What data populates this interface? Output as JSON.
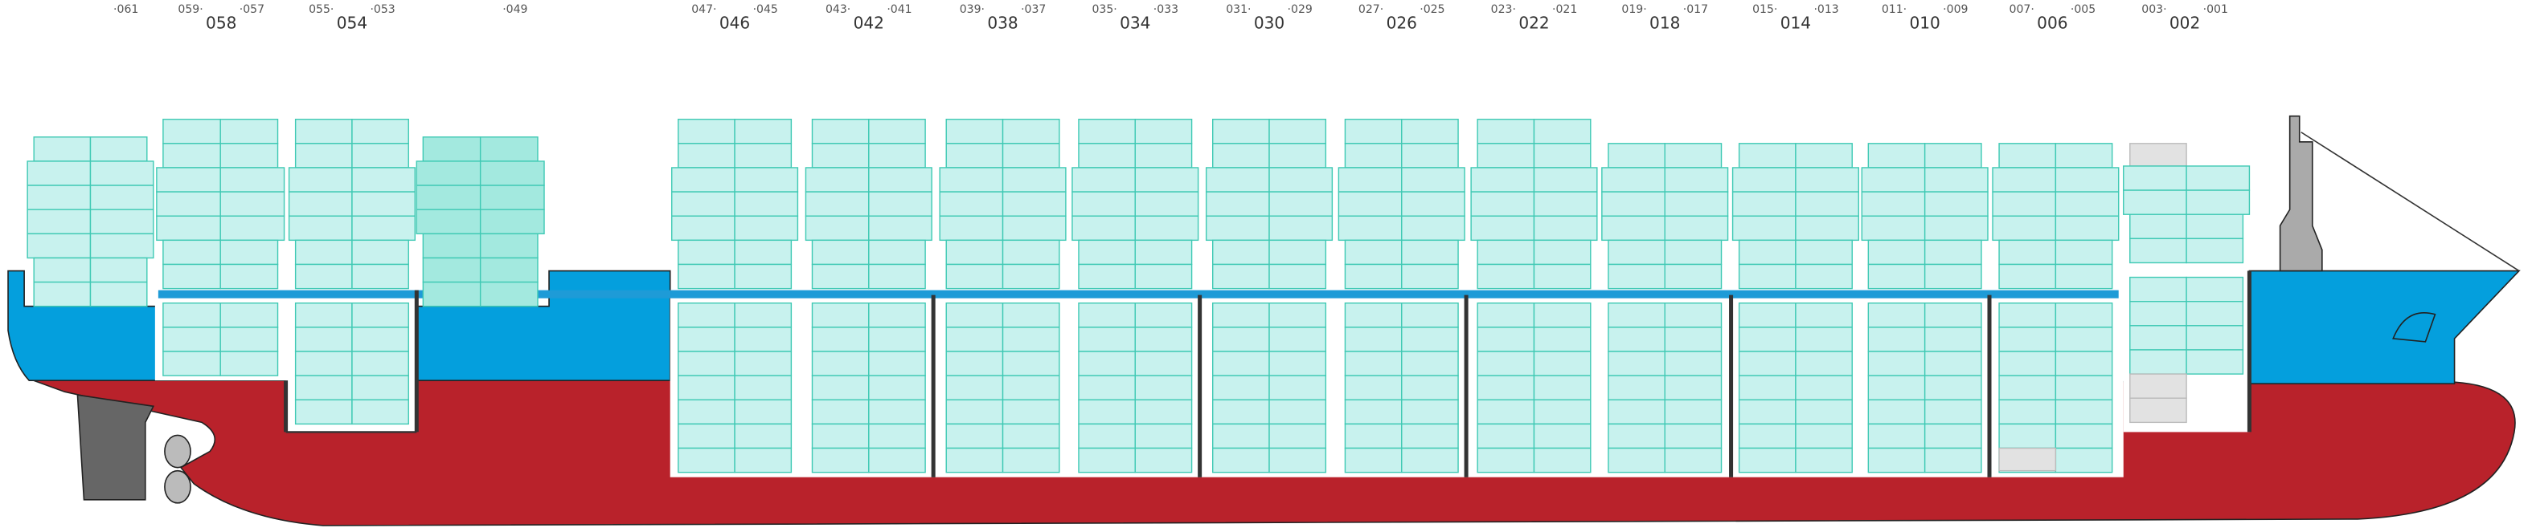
{
  "single_labels": [
    "·061",
    "·049"
  ],
  "bays": [
    {
      "label": "058",
      "aft": "059·",
      "fore": "·057"
    },
    {
      "label": "054",
      "aft": "055·",
      "fore": "·053"
    },
    {
      "label": "046",
      "aft": "047·",
      "fore": "·045"
    },
    {
      "label": "042",
      "aft": "043·",
      "fore": "·041"
    },
    {
      "label": "038",
      "aft": "039·",
      "fore": "·037"
    },
    {
      "label": "034",
      "aft": "035·",
      "fore": "·033"
    },
    {
      "label": "030",
      "aft": "031·",
      "fore": "·029"
    },
    {
      "label": "026",
      "aft": "027·",
      "fore": "·025"
    },
    {
      "label": "022",
      "aft": "023·",
      "fore": "·021"
    },
    {
      "label": "018",
      "aft": "019·",
      "fore": "·017"
    },
    {
      "label": "014",
      "aft": "015·",
      "fore": "·013"
    },
    {
      "label": "010",
      "aft": "011·",
      "fore": "·009"
    },
    {
      "label": "006",
      "aft": "007·",
      "fore": "·005"
    },
    {
      "label": "002",
      "aft": "003·",
      "fore": "·001"
    }
  ]
}
